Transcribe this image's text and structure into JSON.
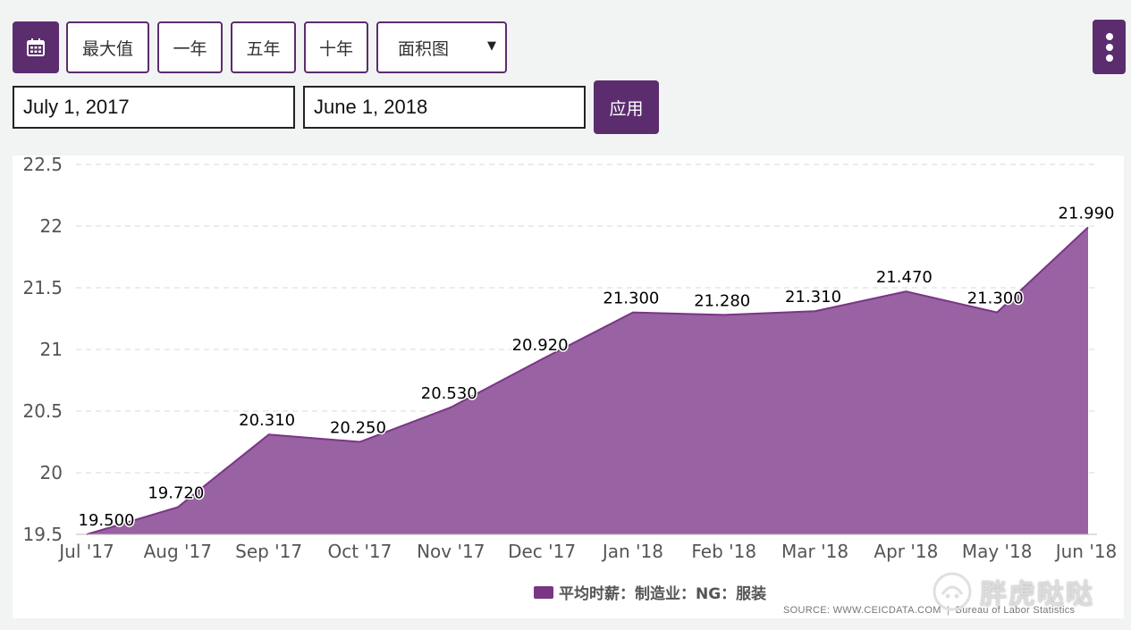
{
  "toolbar": {
    "calendar_icon": "calendar-icon",
    "range_buttons": [
      "最大值",
      "一年",
      "五年",
      "十年"
    ],
    "chart_type_selected": "面积图",
    "menu_icon": "vertical-ellipsis-icon"
  },
  "date_range": {
    "start": "July 1, 2017",
    "end": "June 1, 2018",
    "apply_label": "应用"
  },
  "colors": {
    "accent": "#5b2d6e",
    "area_fill": "#9862a3",
    "area_stroke": "#7b3585",
    "legend_swatch": "#7b3585"
  },
  "chart_data": {
    "type": "area",
    "categories": [
      "Jul '17",
      "Aug '17",
      "Sep '17",
      "Oct '17",
      "Nov '17",
      "Dec '17",
      "Jan '18",
      "Feb '18",
      "Mar '18",
      "Apr '18",
      "May '18",
      "Jun '18"
    ],
    "series": [
      {
        "name": "平均时薪：制造业：NG：服装",
        "values": [
          19.5,
          19.72,
          20.31,
          20.25,
          20.53,
          20.92,
          21.3,
          21.28,
          21.31,
          21.47,
          21.3,
          21.99
        ],
        "labels": [
          "19.500",
          "19.720",
          "20.310",
          "20.250",
          "20.530",
          "20.920",
          "21.300",
          "21.280",
          "21.310",
          "21.470",
          "21.300",
          "21.990"
        ]
      }
    ],
    "y_ticks": [
      "19.5",
      "20",
      "20.5",
      "21",
      "21.5",
      "22",
      "22.5"
    ],
    "ylim": [
      19.5,
      22.5
    ],
    "legend": "bottom-center",
    "grid": true
  },
  "footer": {
    "source": "SOURCE: WWW.CEICDATA.COM",
    "separator": "|",
    "provider": "Bureau of Labor Statistics"
  },
  "watermark": {
    "text": "胖虎哒哒"
  }
}
